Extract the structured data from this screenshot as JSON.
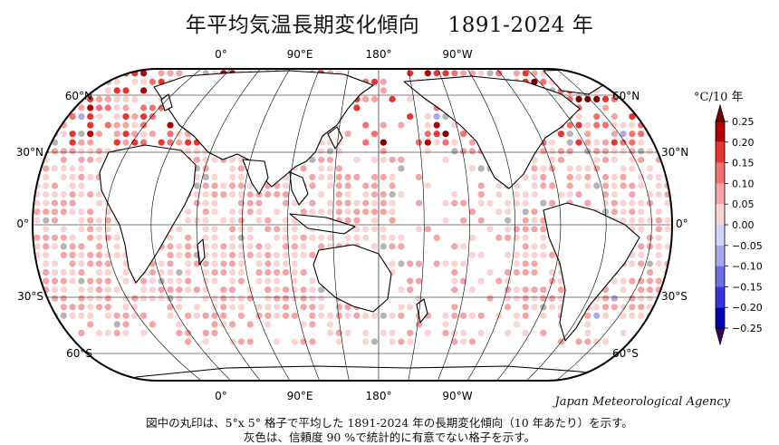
{
  "title": "年平均気温長期変化傾向　 1891-2024 年",
  "agency": "Japan Meteorological Agency",
  "notes": [
    "図中の丸印は、5°x 5° 格子で平均した 1891-2024 年の長期変化傾向（10 年あたり）を示す。",
    "灰色は、信頼度 90 %で統計的に有意でない格子を示す。"
  ],
  "map": {
    "lon_labels": [
      "0°",
      "90°E",
      "180°",
      "90°W"
    ],
    "lat_labels": [
      "60°N",
      "30°N",
      "0°",
      "30°S",
      "60°S"
    ]
  },
  "colorbar": {
    "unit": "°C/10 年",
    "ticks": [
      "0.25",
      "0.20",
      "0.15",
      "0.10",
      "0.05",
      "0.00",
      "−0.05",
      "−0.10",
      "−0.15",
      "−0.20",
      "−0.25"
    ],
    "colors": [
      "#b40000",
      "#e8342f",
      "#f07070",
      "#f5a3a3",
      "#fad2d2",
      "#ffffff",
      "#d2d2fa",
      "#a8a8ee",
      "#6e6ee0",
      "#3434e0",
      "#0000b4"
    ],
    "over_color": "#7a0000",
    "under_color": "#3a0060",
    "insignificant_color": "#b4b4b4"
  }
}
